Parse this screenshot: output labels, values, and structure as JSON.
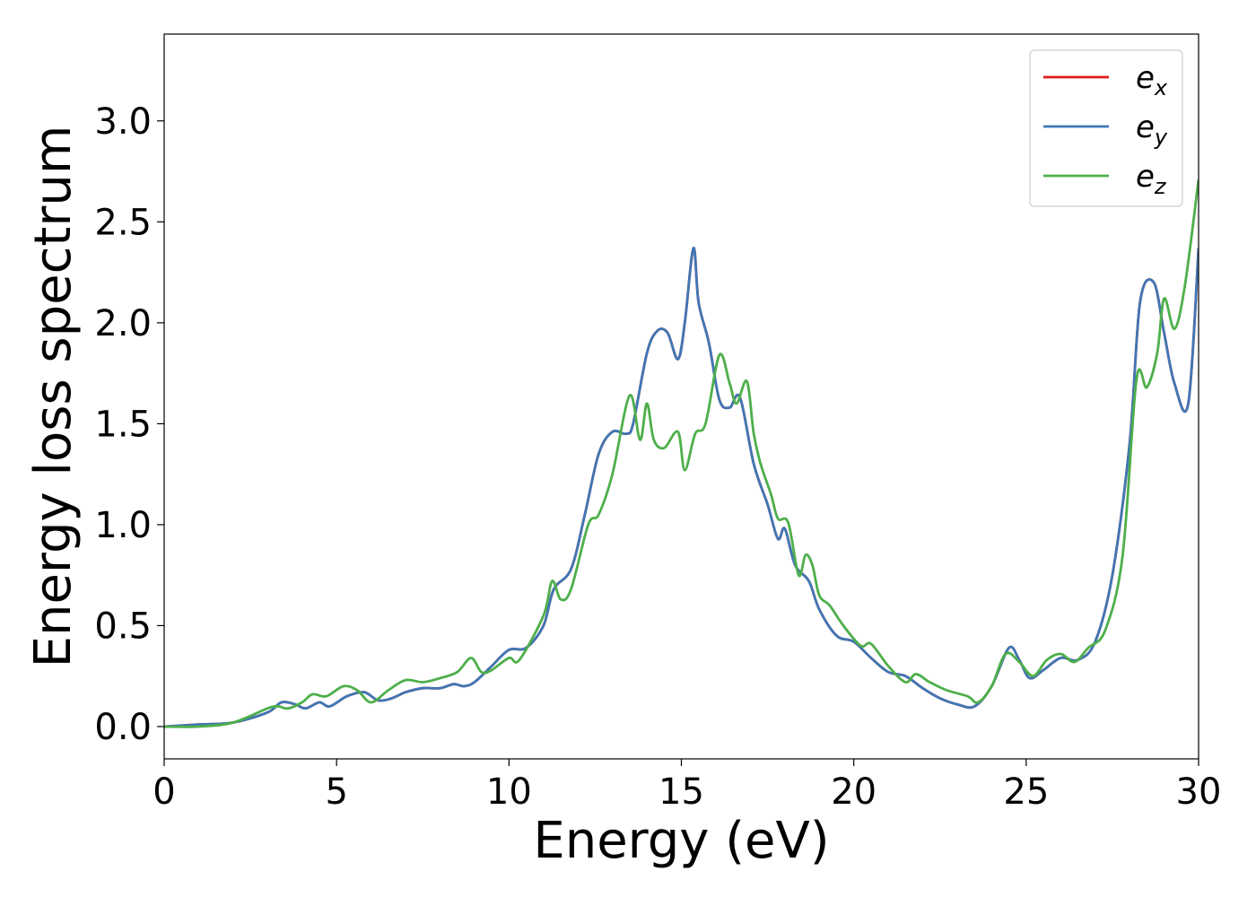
{
  "chart_data": {
    "type": "line",
    "title": "",
    "xlabel": "Energy (eV)",
    "ylabel": "Energy loss spectrum",
    "xlim": [
      0,
      30
    ],
    "ylim": [
      -0.16,
      3.43
    ],
    "xticks": [
      0,
      5,
      10,
      15,
      20,
      25,
      30
    ],
    "xtick_labels": [
      "0",
      "5",
      "10",
      "15",
      "20",
      "25",
      "30"
    ],
    "yticks": [
      0.0,
      0.5,
      1.0,
      1.5,
      2.0,
      2.5,
      3.0
    ],
    "ytick_labels": [
      "0.0",
      "0.5",
      "1.0",
      "1.5",
      "2.0",
      "2.5",
      "3.0"
    ],
    "grid": false,
    "legend_position": "top-right",
    "series": [
      {
        "name": "e_x",
        "legend_base": "e",
        "legend_sub": "x",
        "color": "#e41a1c",
        "points": [
          [
            0,
            0
          ],
          [
            1,
            0.01
          ],
          [
            2,
            0.02
          ],
          [
            3,
            0.07
          ],
          [
            3.4,
            0.12
          ],
          [
            3.8,
            0.11
          ],
          [
            4.1,
            0.09
          ],
          [
            4.5,
            0.12
          ],
          [
            4.8,
            0.1
          ],
          [
            5.3,
            0.15
          ],
          [
            5.8,
            0.17
          ],
          [
            6.2,
            0.13
          ],
          [
            6.6,
            0.14
          ],
          [
            7,
            0.17
          ],
          [
            7.5,
            0.19
          ],
          [
            8,
            0.19
          ],
          [
            8.4,
            0.21
          ],
          [
            8.7,
            0.2
          ],
          [
            9,
            0.22
          ],
          [
            9.5,
            0.3
          ],
          [
            10,
            0.38
          ],
          [
            10.5,
            0.39
          ],
          [
            11,
            0.5
          ],
          [
            11.3,
            0.68
          ],
          [
            11.8,
            0.78
          ],
          [
            12.2,
            1.05
          ],
          [
            12.6,
            1.35
          ],
          [
            13,
            1.46
          ],
          [
            13.4,
            1.45
          ],
          [
            13.6,
            1.5
          ],
          [
            14,
            1.85
          ],
          [
            14.3,
            1.96
          ],
          [
            14.6,
            1.95
          ],
          [
            14.9,
            1.82
          ],
          [
            15.1,
            2.0
          ],
          [
            15.35,
            2.37
          ],
          [
            15.5,
            2.1
          ],
          [
            15.8,
            1.9
          ],
          [
            16.1,
            1.62
          ],
          [
            16.4,
            1.58
          ],
          [
            16.7,
            1.63
          ],
          [
            17.1,
            1.3
          ],
          [
            17.5,
            1.1
          ],
          [
            17.8,
            0.93
          ],
          [
            18,
            0.98
          ],
          [
            18.3,
            0.8
          ],
          [
            18.7,
            0.72
          ],
          [
            19,
            0.58
          ],
          [
            19.5,
            0.45
          ],
          [
            20,
            0.42
          ],
          [
            20.5,
            0.34
          ],
          [
            21,
            0.27
          ],
          [
            21.5,
            0.25
          ],
          [
            22,
            0.19
          ],
          [
            22.5,
            0.14
          ],
          [
            23,
            0.11
          ],
          [
            23.5,
            0.1
          ],
          [
            24,
            0.2
          ],
          [
            24.5,
            0.39
          ],
          [
            24.8,
            0.33
          ],
          [
            25.1,
            0.24
          ],
          [
            25.5,
            0.28
          ],
          [
            26,
            0.34
          ],
          [
            26.5,
            0.33
          ],
          [
            27,
            0.42
          ],
          [
            27.5,
            0.75
          ],
          [
            28,
            1.4
          ],
          [
            28.3,
            2.1
          ],
          [
            28.7,
            2.2
          ],
          [
            29,
            1.95
          ],
          [
            29.3,
            1.7
          ],
          [
            29.7,
            1.6
          ],
          [
            30,
            2.37
          ]
        ]
      },
      {
        "name": "e_y",
        "legend_base": "e",
        "legend_sub": "y",
        "color": "#3f77b5",
        "points": [
          [
            0,
            0
          ],
          [
            1,
            0.01
          ],
          [
            2,
            0.02
          ],
          [
            3,
            0.07
          ],
          [
            3.4,
            0.12
          ],
          [
            3.8,
            0.11
          ],
          [
            4.1,
            0.09
          ],
          [
            4.5,
            0.12
          ],
          [
            4.8,
            0.1
          ],
          [
            5.3,
            0.15
          ],
          [
            5.8,
            0.17
          ],
          [
            6.2,
            0.13
          ],
          [
            6.6,
            0.14
          ],
          [
            7,
            0.17
          ],
          [
            7.5,
            0.19
          ],
          [
            8,
            0.19
          ],
          [
            8.4,
            0.21
          ],
          [
            8.7,
            0.2
          ],
          [
            9,
            0.22
          ],
          [
            9.5,
            0.3
          ],
          [
            10,
            0.38
          ],
          [
            10.5,
            0.39
          ],
          [
            11,
            0.5
          ],
          [
            11.3,
            0.68
          ],
          [
            11.8,
            0.78
          ],
          [
            12.2,
            1.05
          ],
          [
            12.6,
            1.35
          ],
          [
            13,
            1.46
          ],
          [
            13.4,
            1.45
          ],
          [
            13.6,
            1.5
          ],
          [
            14,
            1.85
          ],
          [
            14.3,
            1.96
          ],
          [
            14.6,
            1.95
          ],
          [
            14.9,
            1.82
          ],
          [
            15.1,
            2.0
          ],
          [
            15.35,
            2.37
          ],
          [
            15.5,
            2.1
          ],
          [
            15.8,
            1.9
          ],
          [
            16.1,
            1.62
          ],
          [
            16.4,
            1.58
          ],
          [
            16.7,
            1.63
          ],
          [
            17.1,
            1.3
          ],
          [
            17.5,
            1.1
          ],
          [
            17.8,
            0.93
          ],
          [
            18,
            0.98
          ],
          [
            18.3,
            0.8
          ],
          [
            18.7,
            0.72
          ],
          [
            19,
            0.58
          ],
          [
            19.5,
            0.45
          ],
          [
            20,
            0.42
          ],
          [
            20.5,
            0.34
          ],
          [
            21,
            0.27
          ],
          [
            21.5,
            0.25
          ],
          [
            22,
            0.19
          ],
          [
            22.5,
            0.14
          ],
          [
            23,
            0.11
          ],
          [
            23.5,
            0.1
          ],
          [
            24,
            0.2
          ],
          [
            24.5,
            0.39
          ],
          [
            24.8,
            0.33
          ],
          [
            25.1,
            0.24
          ],
          [
            25.5,
            0.28
          ],
          [
            26,
            0.34
          ],
          [
            26.5,
            0.33
          ],
          [
            27,
            0.42
          ],
          [
            27.5,
            0.75
          ],
          [
            28,
            1.4
          ],
          [
            28.3,
            2.1
          ],
          [
            28.7,
            2.2
          ],
          [
            29,
            1.95
          ],
          [
            29.3,
            1.7
          ],
          [
            29.7,
            1.6
          ],
          [
            30,
            2.37
          ]
        ]
      },
      {
        "name": "e_z",
        "legend_base": "e",
        "legend_sub": "z",
        "color": "#4daf4a",
        "points": [
          [
            0,
            0
          ],
          [
            1,
            0.0
          ],
          [
            2,
            0.02
          ],
          [
            3,
            0.09
          ],
          [
            3.3,
            0.1
          ],
          [
            3.6,
            0.09
          ],
          [
            4,
            0.12
          ],
          [
            4.3,
            0.16
          ],
          [
            4.7,
            0.15
          ],
          [
            5.2,
            0.2
          ],
          [
            5.6,
            0.18
          ],
          [
            6,
            0.12
          ],
          [
            6.5,
            0.18
          ],
          [
            7,
            0.23
          ],
          [
            7.5,
            0.22
          ],
          [
            8,
            0.24
          ],
          [
            8.5,
            0.27
          ],
          [
            8.9,
            0.34
          ],
          [
            9.2,
            0.27
          ],
          [
            9.5,
            0.28
          ],
          [
            10,
            0.34
          ],
          [
            10.3,
            0.33
          ],
          [
            11,
            0.55
          ],
          [
            11.25,
            0.72
          ],
          [
            11.5,
            0.63
          ],
          [
            11.8,
            0.68
          ],
          [
            12.3,
            1.0
          ],
          [
            12.6,
            1.05
          ],
          [
            13,
            1.25
          ],
          [
            13.5,
            1.64
          ],
          [
            13.8,
            1.42
          ],
          [
            14,
            1.6
          ],
          [
            14.2,
            1.42
          ],
          [
            14.5,
            1.38
          ],
          [
            14.9,
            1.46
          ],
          [
            15.1,
            1.27
          ],
          [
            15.4,
            1.45
          ],
          [
            15.7,
            1.5
          ],
          [
            16.1,
            1.84
          ],
          [
            16.4,
            1.7
          ],
          [
            16.6,
            1.6
          ],
          [
            16.9,
            1.71
          ],
          [
            17.1,
            1.45
          ],
          [
            17.3,
            1.3
          ],
          [
            17.6,
            1.15
          ],
          [
            17.8,
            1.03
          ],
          [
            18.1,
            1.01
          ],
          [
            18.4,
            0.75
          ],
          [
            18.6,
            0.85
          ],
          [
            18.8,
            0.8
          ],
          [
            19,
            0.65
          ],
          [
            19.3,
            0.6
          ],
          [
            19.7,
            0.5
          ],
          [
            20.2,
            0.4
          ],
          [
            20.5,
            0.41
          ],
          [
            21,
            0.3
          ],
          [
            21.5,
            0.22
          ],
          [
            21.8,
            0.26
          ],
          [
            22.2,
            0.22
          ],
          [
            22.7,
            0.18
          ],
          [
            23.3,
            0.15
          ],
          [
            23.6,
            0.12
          ],
          [
            24,
            0.2
          ],
          [
            24.4,
            0.36
          ],
          [
            24.8,
            0.32
          ],
          [
            25.2,
            0.25
          ],
          [
            25.6,
            0.33
          ],
          [
            26,
            0.36
          ],
          [
            26.4,
            0.32
          ],
          [
            26.8,
            0.39
          ],
          [
            27.3,
            0.48
          ],
          [
            27.8,
            0.85
          ],
          [
            28.2,
            1.72
          ],
          [
            28.5,
            1.68
          ],
          [
            28.8,
            1.85
          ],
          [
            29,
            2.12
          ],
          [
            29.3,
            1.97
          ],
          [
            29.6,
            2.18
          ],
          [
            30,
            2.71
          ]
        ]
      }
    ]
  }
}
